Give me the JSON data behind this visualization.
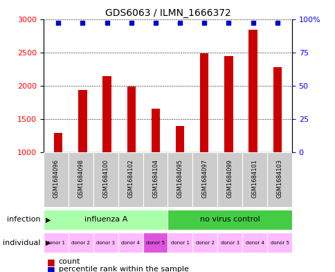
{
  "title": "GDS6063 / ILMN_1666372",
  "samples": [
    "GSM1684096",
    "GSM1684098",
    "GSM1684100",
    "GSM1684102",
    "GSM1684104",
    "GSM1684095",
    "GSM1684097",
    "GSM1684099",
    "GSM1684101",
    "GSM1684103"
  ],
  "counts": [
    1290,
    1940,
    2140,
    1990,
    1650,
    1400,
    2490,
    2440,
    2840,
    2280
  ],
  "percentile_ranks": [
    97,
    97,
    97,
    97,
    97,
    97,
    97,
    97,
    97,
    97
  ],
  "bar_color": "#cc0000",
  "dot_color": "#0000cc",
  "ylim_left": [
    1000,
    3000
  ],
  "ylim_right": [
    0,
    100
  ],
  "yticks_left": [
    1000,
    1500,
    2000,
    2500,
    3000
  ],
  "yticks_right": [
    0,
    25,
    50,
    75,
    100
  ],
  "yticklabels_right": [
    "0",
    "25",
    "50",
    "75",
    "100%"
  ],
  "individual_donors": [
    "donor 1",
    "donor 2",
    "donor 3",
    "donor 4",
    "donor 5",
    "donor 1",
    "donor 2",
    "donor 3",
    "donor 4",
    "donor 5"
  ],
  "donor_colors": [
    "#ffbbff",
    "#ffbbff",
    "#ffbbff",
    "#ffbbff",
    "#dd55dd",
    "#ffbbff",
    "#ffbbff",
    "#ffbbff",
    "#ffbbff",
    "#ffbbff"
  ],
  "legend_count_color": "#cc0000",
  "legend_dot_color": "#0000cc",
  "bg_color": "#ffffff",
  "sample_bg_color": "#cccccc",
  "infect_color_light": "#aaffaa",
  "infect_color_dark": "#44cc44"
}
